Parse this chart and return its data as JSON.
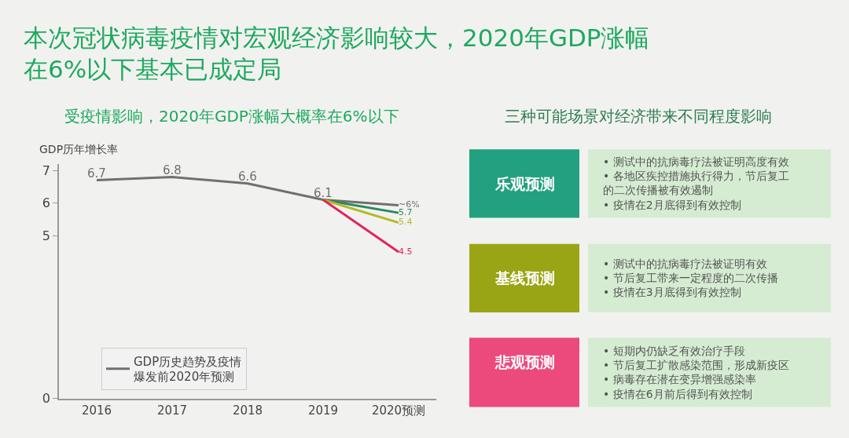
{
  "chart_data": [
    {
      "type": "line",
      "title": "本次冠状病毒疫情对宏观经济影响较大，2020年GDP涨幅在6%以下基本已成定局",
      "subtitle": "受疫情影响，2020年GDP涨幅大概率在6%以下",
      "ylabel": "GDP历年增长率",
      "categories": [
        "2016",
        "2017",
        "2018",
        "2019",
        "2020预测"
      ],
      "series": [
        {
          "name": "GDP历史趋势及疫情爆发前2020年预测",
          "color": "#707070",
          "values": [
            6.7,
            6.8,
            6.6,
            6.1,
            5.93
          ],
          "value_labels": [
            "6.7",
            "6.8",
            "6.6",
            "6.1",
            "~6%"
          ]
        },
        {
          "color": "#2a8a5a",
          "values": [
            null,
            null,
            null,
            6.1,
            5.7
          ],
          "value_labels": [
            null,
            null,
            null,
            null,
            "5.7"
          ]
        },
        {
          "color": "#b5b825",
          "values": [
            null,
            null,
            null,
            6.1,
            5.4
          ],
          "value_labels": [
            null,
            null,
            null,
            null,
            "5.4"
          ]
        },
        {
          "color": "#e0245e",
          "values": [
            null,
            null,
            null,
            6.1,
            4.5
          ],
          "value_labels": [
            null,
            null,
            null,
            null,
            "4.5"
          ]
        }
      ],
      "ylim": [
        0,
        7.2
      ],
      "yticks": [
        0,
        5,
        6,
        7
      ],
      "legend": "bottom left",
      "grid": false,
      "marker": "none",
      "line_style": "solid"
    },
    {
      "type": "other",
      "title": "三种可能场景对经济带来不同程度影响",
      "categories": [
        "乐观预测",
        "基线预测",
        "悲观预测"
      ],
      "colors": [
        "#23a07f",
        "#9aa516",
        "#ec4a7c"
      ],
      "annotations": [
        "• 测试中的抗病毒疗法被证明高度有效\n• 各地区疾控措施执行得力，节后复工的二次传播被有效遏制\n• 疫情在2月底得到有效控制",
        "• 测试中的抗病毒疗法被证明有效\n• 节后复工带来一定程度的二次传播\n• 疫情在3月底得到有效控制",
        "• 短期内仍缺乏有效治疗手段\n• 节后复工扩散感染范围，形成新疫区\n• 病毒存在潜在变异增强感染率\n• 疫情在6月前后得到有效控制"
      ]
    }
  ]
}
